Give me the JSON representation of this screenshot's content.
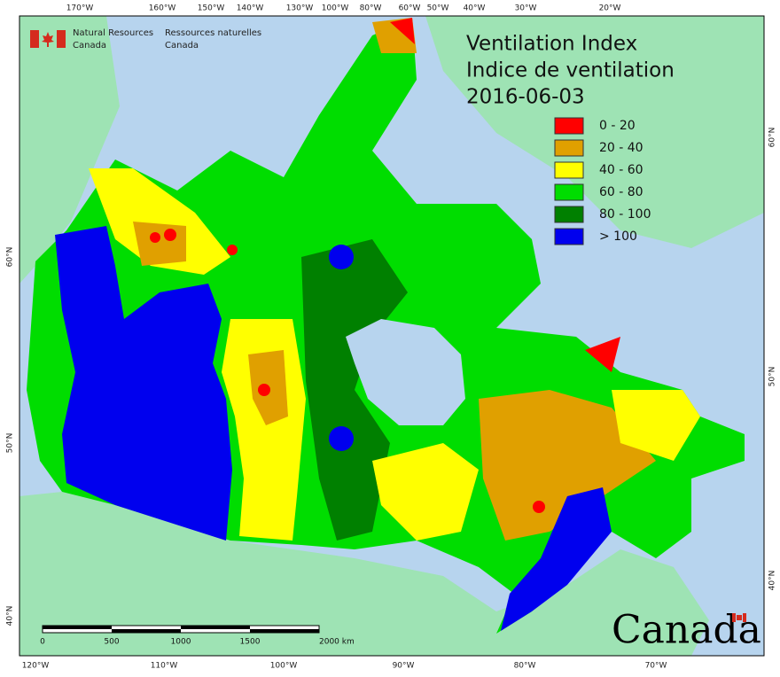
{
  "header": {
    "agency_en": [
      "Natural Resources",
      "Canada"
    ],
    "agency_fr": [
      "Ressources naturelles",
      "Canada"
    ]
  },
  "title": [
    "Ventilation Index",
    "Indice de ventilation"
  ],
  "date": "2016-06-03",
  "legend": [
    {
      "label": "0 - 20",
      "color": "#ff0000"
    },
    {
      "label": "20 - 40",
      "color": "#e0a000"
    },
    {
      "label": "40 - 60",
      "color": "#ffff00"
    },
    {
      "label": "60 - 80",
      "color": "#00dd00"
    },
    {
      "label": "80 - 100",
      "color": "#008000"
    },
    {
      "label": "> 100",
      "color": "#0000ee"
    }
  ],
  "graticule": {
    "top": [
      "170°W",
      "160°W",
      "150°W",
      "140°W",
      "130°W",
      "100°W",
      "80°W",
      "60°W",
      "50°W",
      "40°W",
      "30°W",
      "20°W"
    ],
    "bottom": [
      "120°W",
      "110°W",
      "100°W",
      "90°W",
      "80°W",
      "70°W"
    ],
    "left": [
      "60°N",
      "50°N",
      "40°N"
    ],
    "right": [
      "60°N",
      "50°N",
      "40°N"
    ]
  },
  "scale_bar": [
    "0",
    "500",
    "1000",
    "1500",
    "2000 km"
  ],
  "wordmark": "Canada"
}
